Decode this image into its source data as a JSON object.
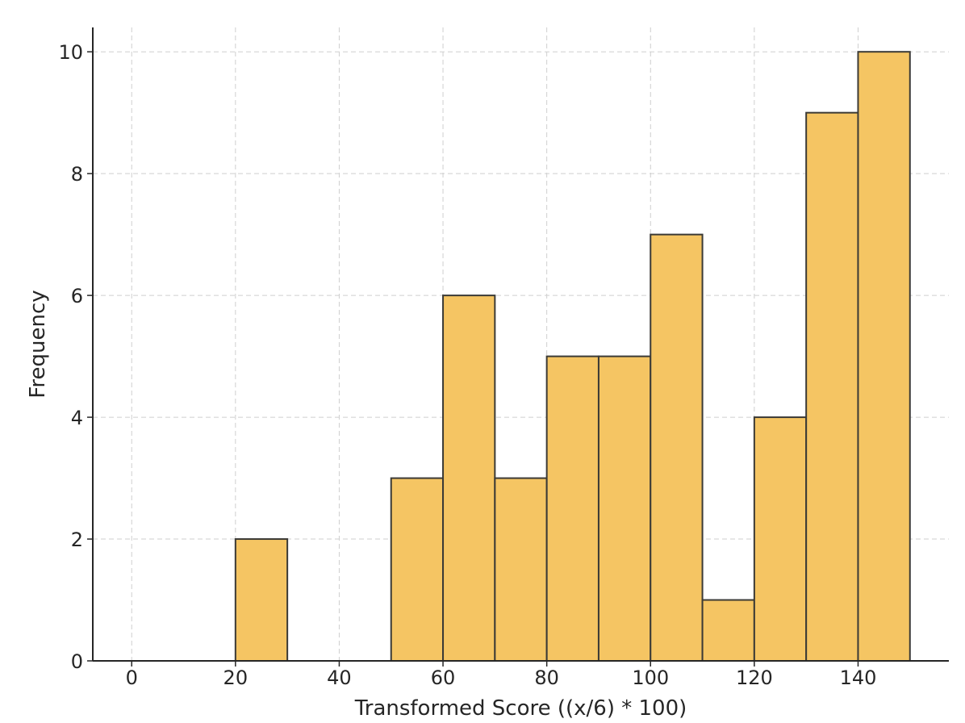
{
  "chart_data": {
    "type": "bar",
    "title": "",
    "xlabel": "Transformed Score ((x/6) * 100)",
    "ylabel": "Frequency",
    "bin_edges": [
      20,
      30,
      50,
      60,
      70,
      80,
      90,
      100,
      110,
      120,
      130,
      140,
      150
    ],
    "bins": [
      {
        "start": 20,
        "end": 30,
        "count": 2
      },
      {
        "start": 50,
        "end": 60,
        "count": 3
      },
      {
        "start": 60,
        "end": 70,
        "count": 6
      },
      {
        "start": 70,
        "end": 80,
        "count": 3
      },
      {
        "start": 80,
        "end": 90,
        "count": 5
      },
      {
        "start": 90,
        "end": 100,
        "count": 5
      },
      {
        "start": 100,
        "end": 110,
        "count": 7
      },
      {
        "start": 110,
        "end": 120,
        "count": 1
      },
      {
        "start": 120,
        "end": 130,
        "count": 4
      },
      {
        "start": 130,
        "end": 140,
        "count": 9
      },
      {
        "start": 140,
        "end": 150,
        "count": 10
      }
    ],
    "xlim": [
      -7.5,
      157.5
    ],
    "ylim": [
      0,
      10.4
    ],
    "x_ticks": [
      0,
      20,
      40,
      60,
      80,
      100,
      120,
      140
    ],
    "y_ticks": [
      0,
      2,
      4,
      6,
      8,
      10
    ],
    "grid": true,
    "bar_color": "#f5c563",
    "edge_color": "#3b3a36"
  }
}
